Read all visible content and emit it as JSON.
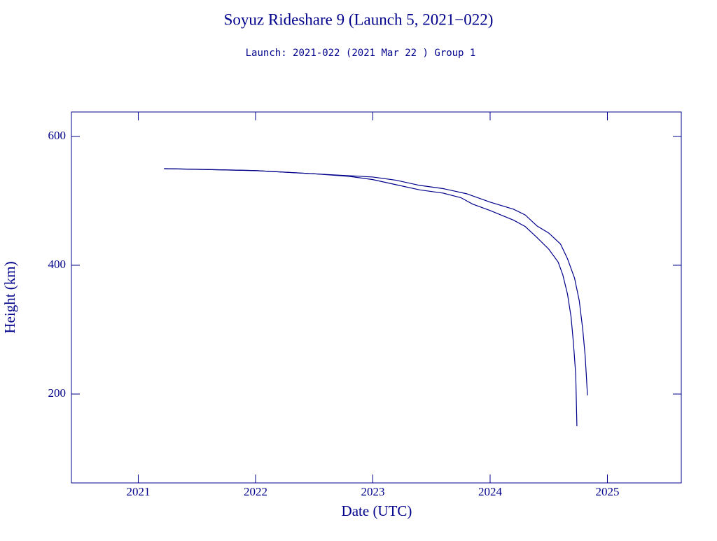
{
  "chart_data": {
    "type": "line",
    "title": "Soyuz Rideshare 9 (Launch 5, 2021−022)",
    "subtitle": "Launch: 2021-022  (2021 Mar 22 )  Group 1",
    "x_label": "Date (UTC)",
    "y_label": "Height (km)",
    "xlim": [
      2020.43,
      2025.63
    ],
    "ylim": [
      62,
      638
    ],
    "xticks": [
      2021,
      2022,
      2023,
      2024,
      2025
    ],
    "yticks": [
      200,
      400,
      600
    ],
    "series": [
      {
        "color": "#00008b",
        "x": [
          2021.22,
          2021.5,
          2022,
          2022.5,
          2022.8,
          2023.0,
          2023.2,
          2023.4,
          2023.6,
          2023.75,
          2023.85,
          2024.0,
          2024.2,
          2024.3,
          2024.4,
          2024.5,
          2024.58,
          2024.62,
          2024.66,
          2024.69,
          2024.71,
          2024.73,
          2024.74
        ],
        "values": [
          550,
          549,
          547,
          542,
          538,
          533,
          525,
          517,
          512,
          505,
          495,
          485,
          470,
          460,
          443,
          425,
          405,
          385,
          355,
          320,
          280,
          230,
          150
        ]
      },
      {
        "color": "#00008b",
        "x": [
          2021.22,
          2022,
          2022.5,
          2022.8,
          2023.0,
          2023.2,
          2023.4,
          2023.6,
          2023.8,
          2024.0,
          2024.2,
          2024.3,
          2024.4,
          2024.5,
          2024.6,
          2024.66,
          2024.72,
          2024.76,
          2024.79,
          2024.81,
          2024.82,
          2024.83
        ],
        "values": [
          550,
          547,
          542,
          539,
          537,
          532,
          524,
          519,
          511,
          498,
          487,
          478,
          461,
          450,
          433,
          410,
          380,
          345,
          300,
          260,
          230,
          198
        ]
      }
    ]
  }
}
